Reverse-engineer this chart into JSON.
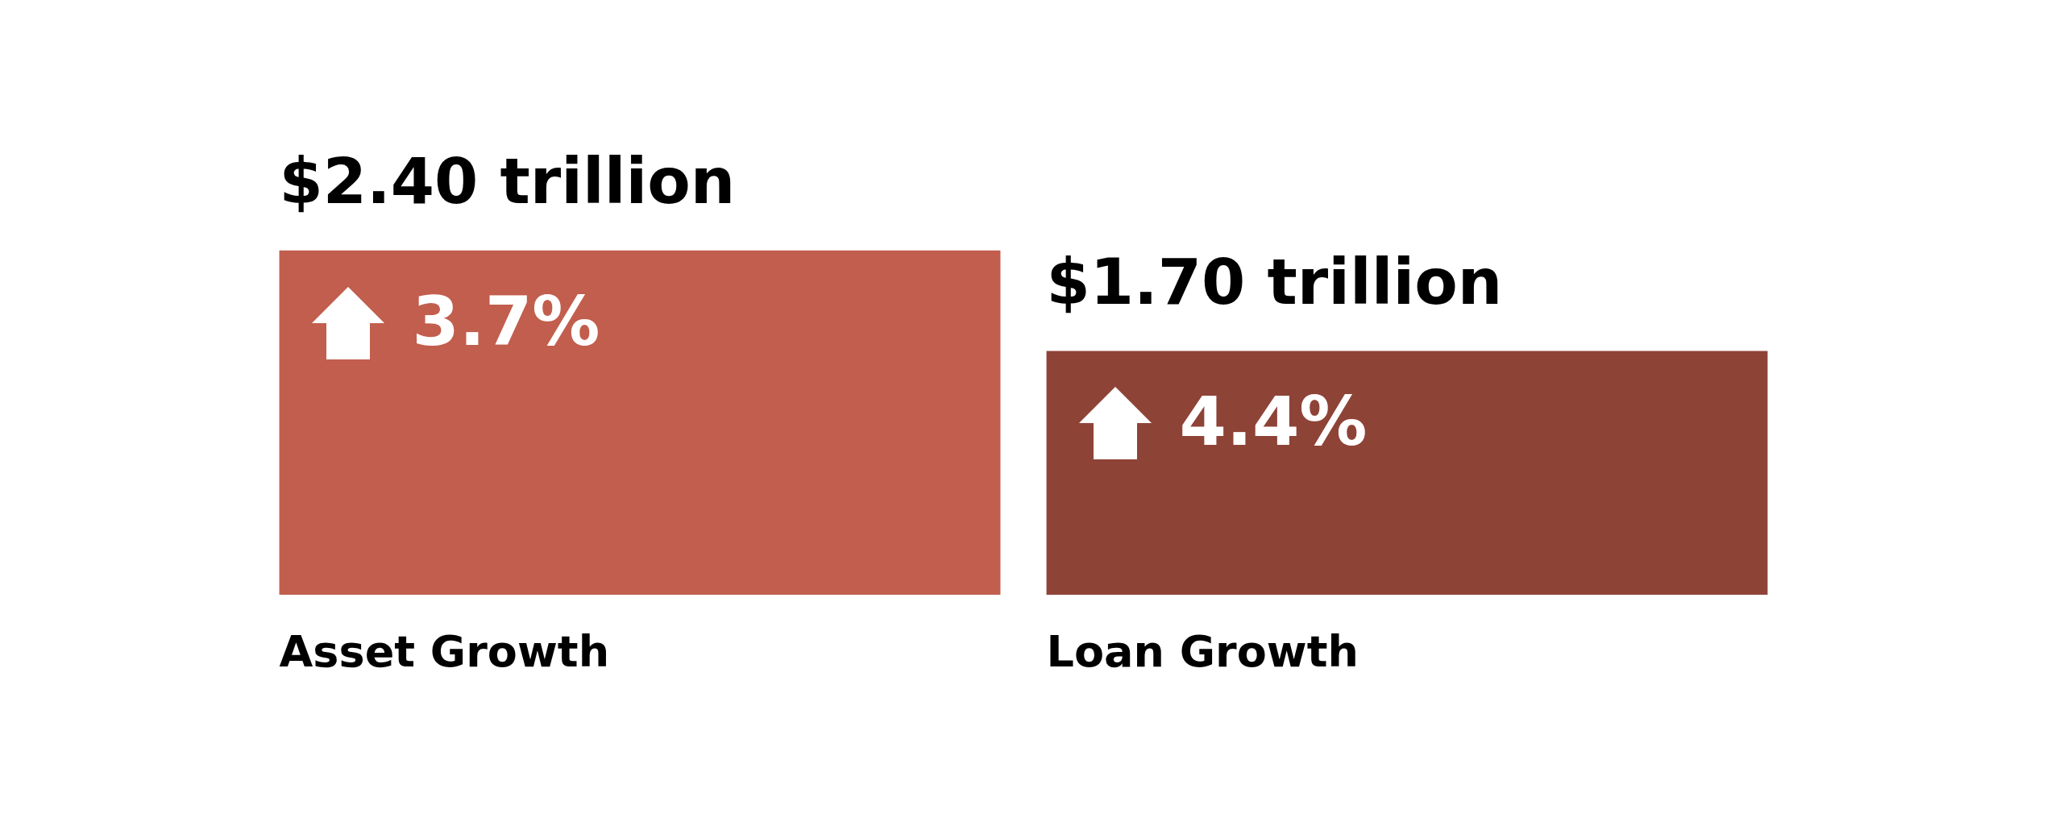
{
  "chart_data": {
    "type": "bar",
    "categories": [
      "Asset Growth",
      "Loan Growth"
    ],
    "values": [
      2.4,
      1.7
    ],
    "value_labels": [
      "$2.40 trillion",
      "$1.70 trillion"
    ],
    "colors": [
      "#c25e4d",
      "#8e4337"
    ],
    "annotations": [
      "3.7%",
      "4.4%"
    ]
  }
}
